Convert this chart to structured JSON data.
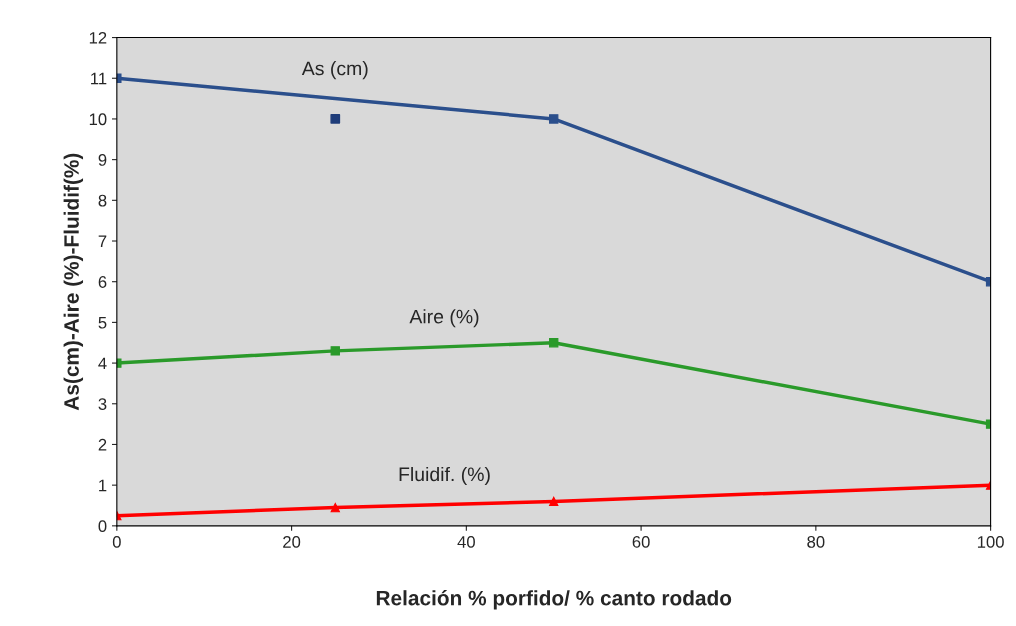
{
  "chart_data": {
    "type": "line",
    "xlabel": "Relación % porfido/ % canto rodado",
    "ylabel": "As(cm)-Aire (%)-Fluidif(%)",
    "series": [
      {
        "name": "As (cm)",
        "color": "#2b4f8c",
        "x": [
          0,
          50,
          100
        ],
        "values": [
          11,
          10,
          6
        ]
      },
      {
        "type": "scatter",
        "color": "#1f3d7a",
        "x": [
          25
        ],
        "values": [
          10
        ]
      },
      {
        "name": "Aire (%)",
        "color": "#2a9a2a",
        "x": [
          0,
          25,
          50,
          100
        ],
        "values": [
          4,
          4.3,
          4.5,
          2.5
        ]
      },
      {
        "name": "Fluidif. (%)",
        "color": "#ff0000",
        "marker": "triangle",
        "x": [
          0,
          25,
          50,
          100
        ],
        "values": [
          0.25,
          0.45,
          0.6,
          1.0
        ]
      }
    ],
    "xlim": [
      0,
      100
    ],
    "xticks": [
      0,
      20,
      40,
      60,
      80,
      100
    ],
    "ylim": [
      0,
      12
    ],
    "yticks": [
      0,
      1,
      2,
      3,
      4,
      5,
      6,
      7,
      8,
      9,
      10,
      11,
      12
    ],
    "grid": false,
    "legend": false,
    "marker": "square",
    "line_style": "solid"
  }
}
